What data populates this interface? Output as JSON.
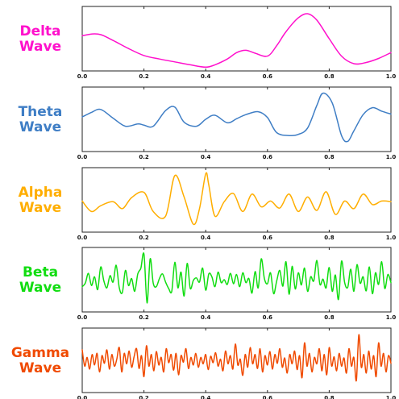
{
  "chart_data": [
    {
      "type": "line",
      "title_lines": [
        "Delta",
        "Wave"
      ],
      "color": "#ff10cc",
      "xlim": [
        0.0,
        1.0
      ],
      "ylim": [
        0.0,
        1.0
      ],
      "xticks": [
        "0.0",
        "0.2",
        "0.4",
        "0.6",
        "0.8",
        "1.0"
      ],
      "x": [
        0.0,
        0.03,
        0.06,
        0.1,
        0.15,
        0.2,
        0.25,
        0.3,
        0.35,
        0.4,
        0.43,
        0.47,
        0.5,
        0.53,
        0.56,
        0.6,
        0.63,
        0.66,
        0.7,
        0.73,
        0.76,
        0.8,
        0.84,
        0.88,
        0.92,
        0.96,
        1.0
      ],
      "y": [
        0.55,
        0.58,
        0.57,
        0.47,
        0.33,
        0.21,
        0.15,
        0.1,
        0.05,
        0.01,
        0.05,
        0.15,
        0.26,
        0.3,
        0.25,
        0.2,
        0.38,
        0.62,
        0.86,
        0.93,
        0.82,
        0.5,
        0.2,
        0.07,
        0.09,
        0.16,
        0.26
      ]
    },
    {
      "type": "line",
      "title_lines": [
        "Theta",
        "Wave"
      ],
      "color": "#3f7ec5",
      "xlim": [
        0.0,
        1.0
      ],
      "ylim": [
        0.0,
        1.0
      ],
      "xticks": [
        "0.0",
        "0.2",
        "0.4",
        "0.6",
        "0.8",
        "1.0"
      ],
      "x": [
        0.0,
        0.03,
        0.06,
        0.1,
        0.14,
        0.18,
        0.2,
        0.23,
        0.27,
        0.3,
        0.33,
        0.37,
        0.4,
        0.43,
        0.47,
        0.5,
        0.53,
        0.57,
        0.6,
        0.63,
        0.67,
        0.7,
        0.73,
        0.76,
        0.78,
        0.81,
        0.84,
        0.86,
        0.88,
        0.91,
        0.94,
        0.97,
        1.0
      ],
      "y": [
        0.54,
        0.62,
        0.67,
        0.52,
        0.38,
        0.42,
        0.4,
        0.38,
        0.65,
        0.71,
        0.45,
        0.38,
        0.5,
        0.57,
        0.44,
        0.51,
        0.58,
        0.63,
        0.53,
        0.27,
        0.22,
        0.24,
        0.35,
        0.74,
        0.95,
        0.78,
        0.22,
        0.12,
        0.3,
        0.58,
        0.7,
        0.64,
        0.59
      ]
    },
    {
      "type": "line",
      "title_lines": [
        "Alpha",
        "Wave"
      ],
      "color": "#ffae00",
      "xlim": [
        0.0,
        1.0
      ],
      "ylim": [
        0.0,
        1.0
      ],
      "xticks": [
        "0.0",
        "0.2",
        "0.4",
        "0.6",
        "0.8",
        "1.0"
      ],
      "x": [
        0.0,
        0.03,
        0.06,
        0.1,
        0.13,
        0.16,
        0.2,
        0.23,
        0.27,
        0.3,
        0.33,
        0.36,
        0.38,
        0.4,
        0.41,
        0.43,
        0.46,
        0.49,
        0.52,
        0.55,
        0.58,
        0.61,
        0.64,
        0.67,
        0.7,
        0.73,
        0.76,
        0.79,
        0.82,
        0.85,
        0.88,
        0.91,
        0.94,
        0.97,
        1.0
      ],
      "y": [
        0.48,
        0.3,
        0.4,
        0.47,
        0.35,
        0.54,
        0.63,
        0.3,
        0.22,
        0.92,
        0.55,
        0.08,
        0.35,
        0.95,
        0.76,
        0.22,
        0.47,
        0.61,
        0.3,
        0.6,
        0.38,
        0.48,
        0.36,
        0.6,
        0.3,
        0.55,
        0.32,
        0.64,
        0.25,
        0.48,
        0.35,
        0.6,
        0.42,
        0.48,
        0.47
      ]
    },
    {
      "type": "line",
      "title_lines": [
        "Beta",
        "Wave"
      ],
      "color": "#11dd11",
      "xlim": [
        0.0,
        1.0
      ],
      "ylim": [
        0.0,
        1.0
      ],
      "xticks": [
        "0.0",
        "0.2",
        "0.4",
        "0.6",
        "0.8",
        "1.0"
      ],
      "x": [
        0.0,
        0.01,
        0.02,
        0.03,
        0.04,
        0.05,
        0.06,
        0.07,
        0.08,
        0.09,
        0.1,
        0.11,
        0.12,
        0.13,
        0.14,
        0.15,
        0.16,
        0.17,
        0.18,
        0.19,
        0.2,
        0.21,
        0.22,
        0.23,
        0.24,
        0.25,
        0.26,
        0.27,
        0.28,
        0.29,
        0.3,
        0.31,
        0.32,
        0.33,
        0.34,
        0.35,
        0.36,
        0.37,
        0.38,
        0.39,
        0.4,
        0.41,
        0.42,
        0.43,
        0.44,
        0.45,
        0.46,
        0.47,
        0.48,
        0.49,
        0.5,
        0.51,
        0.52,
        0.53,
        0.54,
        0.55,
        0.56,
        0.57,
        0.58,
        0.59,
        0.6,
        0.61,
        0.62,
        0.63,
        0.64,
        0.65,
        0.66,
        0.67,
        0.68,
        0.69,
        0.7,
        0.71,
        0.72,
        0.73,
        0.74,
        0.75,
        0.76,
        0.77,
        0.78,
        0.79,
        0.8,
        0.81,
        0.82,
        0.83,
        0.84,
        0.85,
        0.86,
        0.87,
        0.88,
        0.89,
        0.9,
        0.91,
        0.92,
        0.93,
        0.94,
        0.95,
        0.96,
        0.97,
        0.98,
        0.99,
        1.0
      ],
      "y": [
        0.38,
        0.44,
        0.61,
        0.4,
        0.55,
        0.33,
        0.72,
        0.48,
        0.36,
        0.57,
        0.46,
        0.75,
        0.36,
        0.28,
        0.66,
        0.4,
        0.52,
        0.3,
        0.6,
        0.7,
        0.94,
        0.1,
        0.86,
        0.44,
        0.38,
        0.52,
        0.6,
        0.46,
        0.35,
        0.3,
        0.8,
        0.36,
        0.63,
        0.22,
        0.78,
        0.35,
        0.49,
        0.53,
        0.46,
        0.7,
        0.32,
        0.6,
        0.55,
        0.38,
        0.63,
        0.45,
        0.5,
        0.42,
        0.61,
        0.43,
        0.59,
        0.38,
        0.62,
        0.45,
        0.52,
        0.27,
        0.64,
        0.36,
        0.86,
        0.52,
        0.43,
        0.62,
        0.26,
        0.48,
        0.66,
        0.39,
        0.81,
        0.25,
        0.73,
        0.34,
        0.62,
        0.41,
        0.7,
        0.3,
        0.55,
        0.48,
        0.83,
        0.42,
        0.51,
        0.36,
        0.71,
        0.3,
        0.58,
        0.16,
        0.82,
        0.45,
        0.37,
        0.68,
        0.3,
        0.76,
        0.44,
        0.55,
        0.31,
        0.72,
        0.26,
        0.62,
        0.42,
        0.81,
        0.35,
        0.59,
        0.45
      ]
    },
    {
      "type": "line",
      "title_lines": [
        "Gamma",
        "Wave"
      ],
      "color": "#f04a00",
      "xlim": [
        0.0,
        1.0
      ],
      "ylim": [
        0.0,
        1.0
      ],
      "xticks": [
        "0.0",
        "0.2",
        "0.4",
        "0.6",
        "0.8",
        "1.0"
      ],
      "x": [
        0.0,
        0.008,
        0.016,
        0.024,
        0.032,
        0.04,
        0.048,
        0.056,
        0.064,
        0.072,
        0.08,
        0.088,
        0.096,
        0.104,
        0.112,
        0.12,
        0.128,
        0.136,
        0.144,
        0.152,
        0.16,
        0.168,
        0.176,
        0.184,
        0.192,
        0.2,
        0.208,
        0.216,
        0.224,
        0.232,
        0.24,
        0.248,
        0.256,
        0.264,
        0.272,
        0.28,
        0.288,
        0.296,
        0.304,
        0.312,
        0.32,
        0.328,
        0.336,
        0.344,
        0.352,
        0.36,
        0.368,
        0.376,
        0.384,
        0.392,
        0.4,
        0.408,
        0.416,
        0.424,
        0.432,
        0.44,
        0.448,
        0.456,
        0.464,
        0.472,
        0.48,
        0.488,
        0.496,
        0.504,
        0.512,
        0.52,
        0.528,
        0.536,
        0.544,
        0.552,
        0.56,
        0.568,
        0.576,
        0.584,
        0.592,
        0.6,
        0.608,
        0.616,
        0.624,
        0.632,
        0.64,
        0.648,
        0.656,
        0.664,
        0.672,
        0.68,
        0.688,
        0.696,
        0.704,
        0.712,
        0.72,
        0.728,
        0.736,
        0.744,
        0.752,
        0.76,
        0.768,
        0.776,
        0.784,
        0.792,
        0.8,
        0.808,
        0.816,
        0.824,
        0.832,
        0.84,
        0.848,
        0.856,
        0.864,
        0.872,
        0.88,
        0.888,
        0.896,
        0.904,
        0.912,
        0.92,
        0.928,
        0.936,
        0.944,
        0.952,
        0.96,
        0.968,
        0.976,
        0.984,
        0.992,
        1.0
      ],
      "y": [
        0.68,
        0.4,
        0.55,
        0.35,
        0.6,
        0.42,
        0.62,
        0.3,
        0.58,
        0.45,
        0.68,
        0.35,
        0.6,
        0.4,
        0.52,
        0.72,
        0.3,
        0.62,
        0.44,
        0.66,
        0.38,
        0.56,
        0.7,
        0.36,
        0.58,
        0.22,
        0.75,
        0.4,
        0.6,
        0.32,
        0.65,
        0.42,
        0.55,
        0.3,
        0.7,
        0.46,
        0.6,
        0.33,
        0.62,
        0.25,
        0.58,
        0.47,
        0.7,
        0.36,
        0.55,
        0.42,
        0.62,
        0.38,
        0.55,
        0.44,
        0.6,
        0.34,
        0.57,
        0.46,
        0.63,
        0.4,
        0.52,
        0.32,
        0.66,
        0.44,
        0.58,
        0.35,
        0.78,
        0.42,
        0.52,
        0.24,
        0.6,
        0.38,
        0.72,
        0.44,
        0.6,
        0.36,
        0.7,
        0.3,
        0.58,
        0.42,
        0.65,
        0.35,
        0.6,
        0.45,
        0.7,
        0.38,
        0.54,
        0.28,
        0.6,
        0.44,
        0.66,
        0.34,
        0.58,
        0.2,
        0.8,
        0.4,
        0.62,
        0.3,
        0.55,
        0.44,
        0.7,
        0.32,
        0.6,
        0.25,
        0.72,
        0.4,
        0.56,
        0.32,
        0.62,
        0.4,
        0.54,
        0.28,
        0.7,
        0.4,
        0.55,
        0.15,
        0.94,
        0.38,
        0.6,
        0.28,
        0.66,
        0.35,
        0.58,
        0.22,
        0.8,
        0.4,
        0.62,
        0.3,
        0.58,
        0.45
      ]
    }
  ]
}
